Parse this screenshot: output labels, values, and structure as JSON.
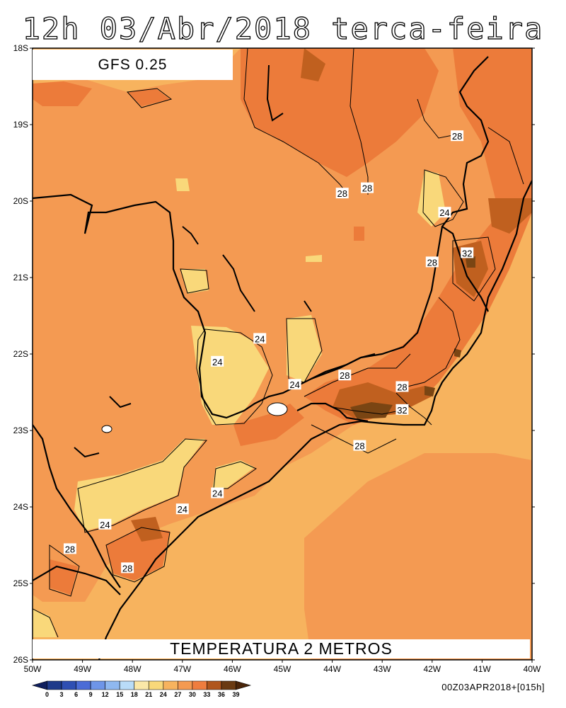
{
  "title": "12h 03/Abr/2018 terca-feira",
  "model": "GFS 0.25",
  "variable": "TEMPERATURA 2 METROS",
  "run_info": "00Z03APR2018+[015h]",
  "lat_labels": [
    "18S",
    "19S",
    "20S",
    "21S",
    "22S",
    "23S",
    "24S",
    "25S",
    "26S"
  ],
  "lon_labels": [
    "50W",
    "49W",
    "48W",
    "47W",
    "46W",
    "45W",
    "44W",
    "43W",
    "42W",
    "41W",
    "40W"
  ],
  "isotherm_labels": [
    {
      "text": "28",
      "lon": -43.8,
      "lat": -19.9
    },
    {
      "text": "28",
      "lon": -43.3,
      "lat": -19.83
    },
    {
      "text": "28",
      "lon": -41.5,
      "lat": -19.15
    },
    {
      "text": "24",
      "lon": -41.75,
      "lat": -20.15
    },
    {
      "text": "32",
      "lon": -41.3,
      "lat": -20.68
    },
    {
      "text": "28",
      "lon": -42.0,
      "lat": -20.8
    },
    {
      "text": "24",
      "lon": -45.45,
      "lat": -21.8
    },
    {
      "text": "24",
      "lon": -46.3,
      "lat": -22.1
    },
    {
      "text": "24",
      "lon": -44.75,
      "lat": -22.4
    },
    {
      "text": "28",
      "lon": -43.75,
      "lat": -22.28
    },
    {
      "text": "28",
      "lon": -42.6,
      "lat": -22.43
    },
    {
      "text": "32",
      "lon": -42.6,
      "lat": -22.73
    },
    {
      "text": "28",
      "lon": -43.45,
      "lat": -23.2
    },
    {
      "text": "24",
      "lon": -46.3,
      "lat": -23.82
    },
    {
      "text": "24",
      "lon": -47.0,
      "lat": -24.03
    },
    {
      "text": "24",
      "lon": -48.55,
      "lat": -24.23
    },
    {
      "text": "28",
      "lon": -49.25,
      "lat": -24.55
    },
    {
      "text": "28",
      "lon": -48.1,
      "lat": -24.8
    }
  ],
  "colorbar": {
    "values": [
      "0",
      "3",
      "6",
      "9",
      "12",
      "15",
      "18",
      "21",
      "24",
      "27",
      "30",
      "33",
      "36",
      "39"
    ],
    "colors": [
      "#0f1f5e",
      "#1e3a8a",
      "#2f4fb3",
      "#4b6cd6",
      "#6e95e8",
      "#8fb8f0",
      "#b9dcf8",
      "#fbe8a8",
      "#f9d87a",
      "#f7b35e",
      "#f49a52",
      "#ef7d3f",
      "#b0561d",
      "#6a3a12",
      "#4a250a"
    ]
  },
  "fill_colors": {
    "c21_24": "#f9d87a",
    "c24_27": "#f7b35e",
    "c27_30": "#f49a52",
    "c30_33": "#ec7b3a",
    "c33_36": "#c0601f",
    "c36_39": "#7a4513"
  }
}
